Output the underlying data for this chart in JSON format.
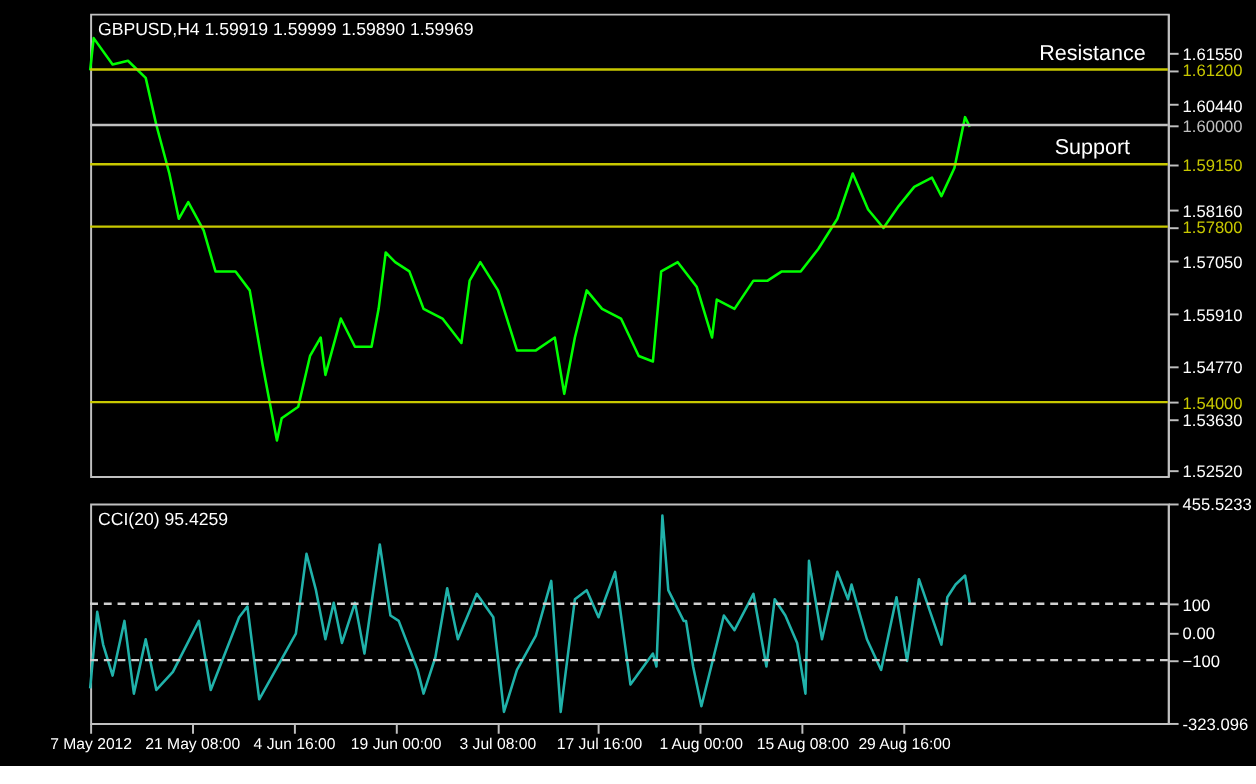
{
  "chart_data": [
    {
      "type": "line",
      "annotations": [
        "GBPUSD,H4  1.59919 1.59999 1.59890 1.59969"
      ],
      "marker": "none",
      "line_style": "solid",
      "x": [
        "2012-05-07T00:00",
        "2012-05-07T12:00",
        "2012-05-10T04:00",
        "2012-05-12T08:00",
        "2012-05-14T20:00",
        "2012-05-16T08:00",
        "2012-05-18T04:00",
        "2012-05-19T12:00",
        "2012-05-20T20:00",
        "2012-05-23T00:00",
        "2012-05-24T16:00",
        "2012-05-27T12:00",
        "2012-05-29T12:00",
        "2012-05-31T08:00",
        "2012-06-02T08:00",
        "2012-06-03T00:00",
        "2012-06-05T08:00",
        "2012-06-07T00:00",
        "2012-06-08T12:00",
        "2012-06-09T04:00",
        "2012-06-11T08:00",
        "2012-06-13T08:00",
        "2012-06-15T16:00",
        "2012-06-16T16:00",
        "2012-06-17T16:00",
        "2012-06-19T00:00",
        "2012-06-21T00:00",
        "2012-06-23T00:00",
        "2012-06-25T16:00",
        "2012-06-28T08:00",
        "2012-06-29T12:00",
        "2012-07-01T00:00",
        "2012-07-03T12:00",
        "2012-07-06T04:00",
        "2012-07-08T20:00",
        "2012-07-11T12:00",
        "2012-07-12T20:00",
        "2012-07-14T08:00",
        "2012-07-16T00:00",
        "2012-07-18T04:00",
        "2012-07-20T20:00",
        "2012-07-23T08:00",
        "2012-07-25T08:00",
        "2012-07-26T12:00",
        "2012-07-28T20:00",
        "2012-07-31T12:00",
        "2012-08-02T16:00",
        "2012-08-03T08:00",
        "2012-08-05T20:00",
        "2012-08-08T12:00",
        "2012-08-10T12:00",
        "2012-08-12T12:00",
        "2012-08-15T04:00",
        "2012-08-17T16:00",
        "2012-08-20T08:00",
        "2012-08-22T12:00",
        "2012-08-24T16:00",
        "2012-08-26T20:00",
        "2012-08-29T00:00",
        "2012-08-31T04:00",
        "2012-09-02T16:00",
        "2012-09-04T00:00",
        "2012-09-05T20:00",
        "2012-09-07T08:00",
        "2012-09-08T00:00"
      ],
      "series": [
        {
          "color": "#00ff00",
          "values": [
            1.6118,
            1.6188,
            1.6131,
            1.6139,
            1.6102,
            1.6,
            1.5895,
            1.5797,
            1.5833,
            1.5772,
            1.5683,
            1.5683,
            1.5642,
            1.5479,
            1.5317,
            1.5365,
            1.539,
            1.55,
            1.554,
            1.5459,
            1.5581,
            1.552,
            1.552,
            1.5602,
            1.5724,
            1.5703,
            1.5683,
            1.5602,
            1.5581,
            1.5528,
            1.5663,
            1.5703,
            1.5642,
            1.5512,
            1.5512,
            1.554,
            1.5418,
            1.554,
            1.5642,
            1.5602,
            1.5581,
            1.55,
            1.5488,
            1.5683,
            1.5703,
            1.565,
            1.554,
            1.5622,
            1.5602,
            1.5663,
            1.5663,
            1.5683,
            1.5683,
            1.5732,
            1.5797,
            1.5895,
            1.5817,
            1.5777,
            1.5825,
            1.5866,
            1.5886,
            1.5846,
            1.5907,
            1.6017,
            1.5996
          ]
        }
      ],
      "xlim": [
        "2012-05-07T00:00",
        "2012-10-05T22:00"
      ],
      "ylim": [
        1.524,
        1.6241
      ],
      "yticks": [
        {
          "value": 1.6155,
          "label": "1.61550"
        },
        {
          "value": 1.612,
          "label": "1.61200"
        },
        {
          "value": 1.6044,
          "label": "1.60440"
        },
        {
          "value": 1.6,
          "label": "1.60000"
        },
        {
          "value": 1.5915,
          "label": "1.59150"
        },
        {
          "value": 1.5816,
          "label": "1.58160"
        },
        {
          "value": 1.578,
          "label": "1.57800"
        },
        {
          "value": 1.5705,
          "label": "1.57050"
        },
        {
          "value": 1.5591,
          "label": "1.55910"
        },
        {
          "value": 1.5477,
          "label": "1.54770"
        },
        {
          "value": 1.54,
          "label": "1.54000"
        },
        {
          "value": 1.5363,
          "label": "1.53630"
        },
        {
          "value": 1.5252,
          "label": "1.52520"
        }
      ],
      "ref_lines": [
        {
          "axis": "y",
          "value": 1.612,
          "label": "Resistance",
          "color": "#c8c800"
        },
        {
          "axis": "y",
          "value": 1.6,
          "color": "#c0c0c0"
        },
        {
          "axis": "y",
          "value": 1.5915,
          "label": "Support",
          "color": "#c8c800"
        },
        {
          "axis": "y",
          "value": 1.578,
          "color": "#c8c800"
        },
        {
          "axis": "y",
          "value": 1.54,
          "color": "#c8c800"
        }
      ]
    },
    {
      "type": "line",
      "annotations": [
        "CCI(20) 95.4259"
      ],
      "marker": "none",
      "line_style": "solid",
      "x": [
        "2012-05-07T00:00",
        "2012-05-08T00:00",
        "2012-05-08T20:00",
        "2012-05-10T04:00",
        "2012-05-11T20:00",
        "2012-05-13T04:00",
        "2012-05-14T20:00",
        "2012-05-16T08:00",
        "2012-05-18T16:00",
        "2012-05-22T08:00",
        "2012-05-24T00:00",
        "2012-05-28T00:00",
        "2012-05-29T04:00",
        "2012-05-30T20:00",
        "2012-06-05T00:00",
        "2012-06-06T12:00",
        "2012-06-07T20:00",
        "2012-06-09T04:00",
        "2012-06-10T08:00",
        "2012-06-11T12:00",
        "2012-06-13T08:00",
        "2012-06-14T16:00",
        "2012-06-16T20:00",
        "2012-06-18T08:00",
        "2012-06-19T12:00",
        "2012-06-22T04:00",
        "2012-06-23T00:00",
        "2012-06-24T16:00",
        "2012-06-26T08:00",
        "2012-06-27T20:00",
        "2012-06-30T12:00",
        "2012-07-02T20:00",
        "2012-07-04T08:00",
        "2012-07-06T04:00",
        "2012-07-08T20:00",
        "2012-07-11T00:00",
        "2012-07-12T08:00",
        "2012-07-14T08:00",
        "2012-07-16T00:00",
        "2012-07-17T16:00",
        "2012-07-20T00:00",
        "2012-07-22T04:00",
        "2012-07-25T08:00",
        "2012-07-25T20:00",
        "2012-07-26T16:00",
        "2012-07-27T12:00",
        "2012-07-29T16:00",
        "2012-07-30T00:00",
        "2012-07-31T00:00",
        "2012-08-01T04:00",
        "2012-08-04T08:00",
        "2012-08-05T20:00",
        "2012-08-08T12:00",
        "2012-08-10T08:00",
        "2012-08-11T12:00",
        "2012-08-13T00:00",
        "2012-08-14T16:00",
        "2012-08-15T20:00",
        "2012-08-16T08:00",
        "2012-08-18T04:00",
        "2012-08-20T08:00",
        "2012-08-21T20:00",
        "2012-08-22T08:00",
        "2012-08-24T12:00",
        "2012-08-26T12:00",
        "2012-08-28T16:00",
        "2012-08-30T04:00",
        "2012-08-31T20:00",
        "2012-09-04T00:00",
        "2012-09-04T20:00",
        "2012-09-06T00:00",
        "2012-09-07T08:00",
        "2012-09-08T00:00"
      ],
      "series": [
        {
          "color": "#20b2aa",
          "values": [
            -200,
            71,
            -45,
            -155,
            39,
            -219,
            -26,
            -206,
            -142,
            39,
            -206,
            52,
            90,
            -239,
            -6,
            277,
            148,
            -26,
            103,
            -39,
            103,
            -77,
            310,
            58,
            39,
            -135,
            -219,
            -90,
            155,
            -26,
            135,
            52,
            -284,
            -135,
            -13,
            181,
            -284,
            116,
            148,
            52,
            213,
            -187,
            -77,
            -123,
            413,
            148,
            39,
            39,
            -123,
            -264,
            58,
            6,
            135,
            -123,
            116,
            58,
            -39,
            -219,
            252,
            -26,
            213,
            116,
            168,
            -26,
            -135,
            123,
            -103,
            187,
            -45,
            123,
            168,
            200,
            103
          ]
        }
      ],
      "xlim": [
        "2012-05-07T00:00",
        "2012-10-05T22:00"
      ],
      "ylim": [
        -323.096,
        455.5233
      ],
      "yticks": [
        {
          "value": 455.5233,
          "label": "455.5233"
        },
        100,
        {
          "value": 0,
          "label": "0.00"
        },
        -100,
        {
          "value": -323.096,
          "label": "-323.096"
        }
      ],
      "xticks": [
        {
          "value": "2012-05-07T00:00",
          "label": "7 May 2012"
        },
        {
          "value": "2012-05-21T08:00",
          "label": "21 May 08:00"
        },
        {
          "value": "2012-06-04T16:00",
          "label": "4 Jun 16:00"
        },
        {
          "value": "2012-06-19T00:00",
          "label": "19 Jun 00:00"
        },
        {
          "value": "2012-07-03T08:00",
          "label": "3 Jul 08:00"
        },
        {
          "value": "2012-07-17T16:00",
          "label": "17 Jul 16:00"
        },
        {
          "value": "2012-08-01T00:00",
          "label": "1 Aug 00:00"
        },
        {
          "value": "2012-08-15T08:00",
          "label": "15 Aug 08:00"
        },
        {
          "value": "2012-08-29T16:00",
          "label": "29 Aug 16:00"
        }
      ],
      "ref_lines": [
        {
          "axis": "y",
          "value": 100,
          "color": "#d0d0d0",
          "line_style": "dashed"
        },
        {
          "axis": "y",
          "value": -100,
          "color": "#d0d0d0",
          "line_style": "dashed"
        }
      ]
    }
  ]
}
